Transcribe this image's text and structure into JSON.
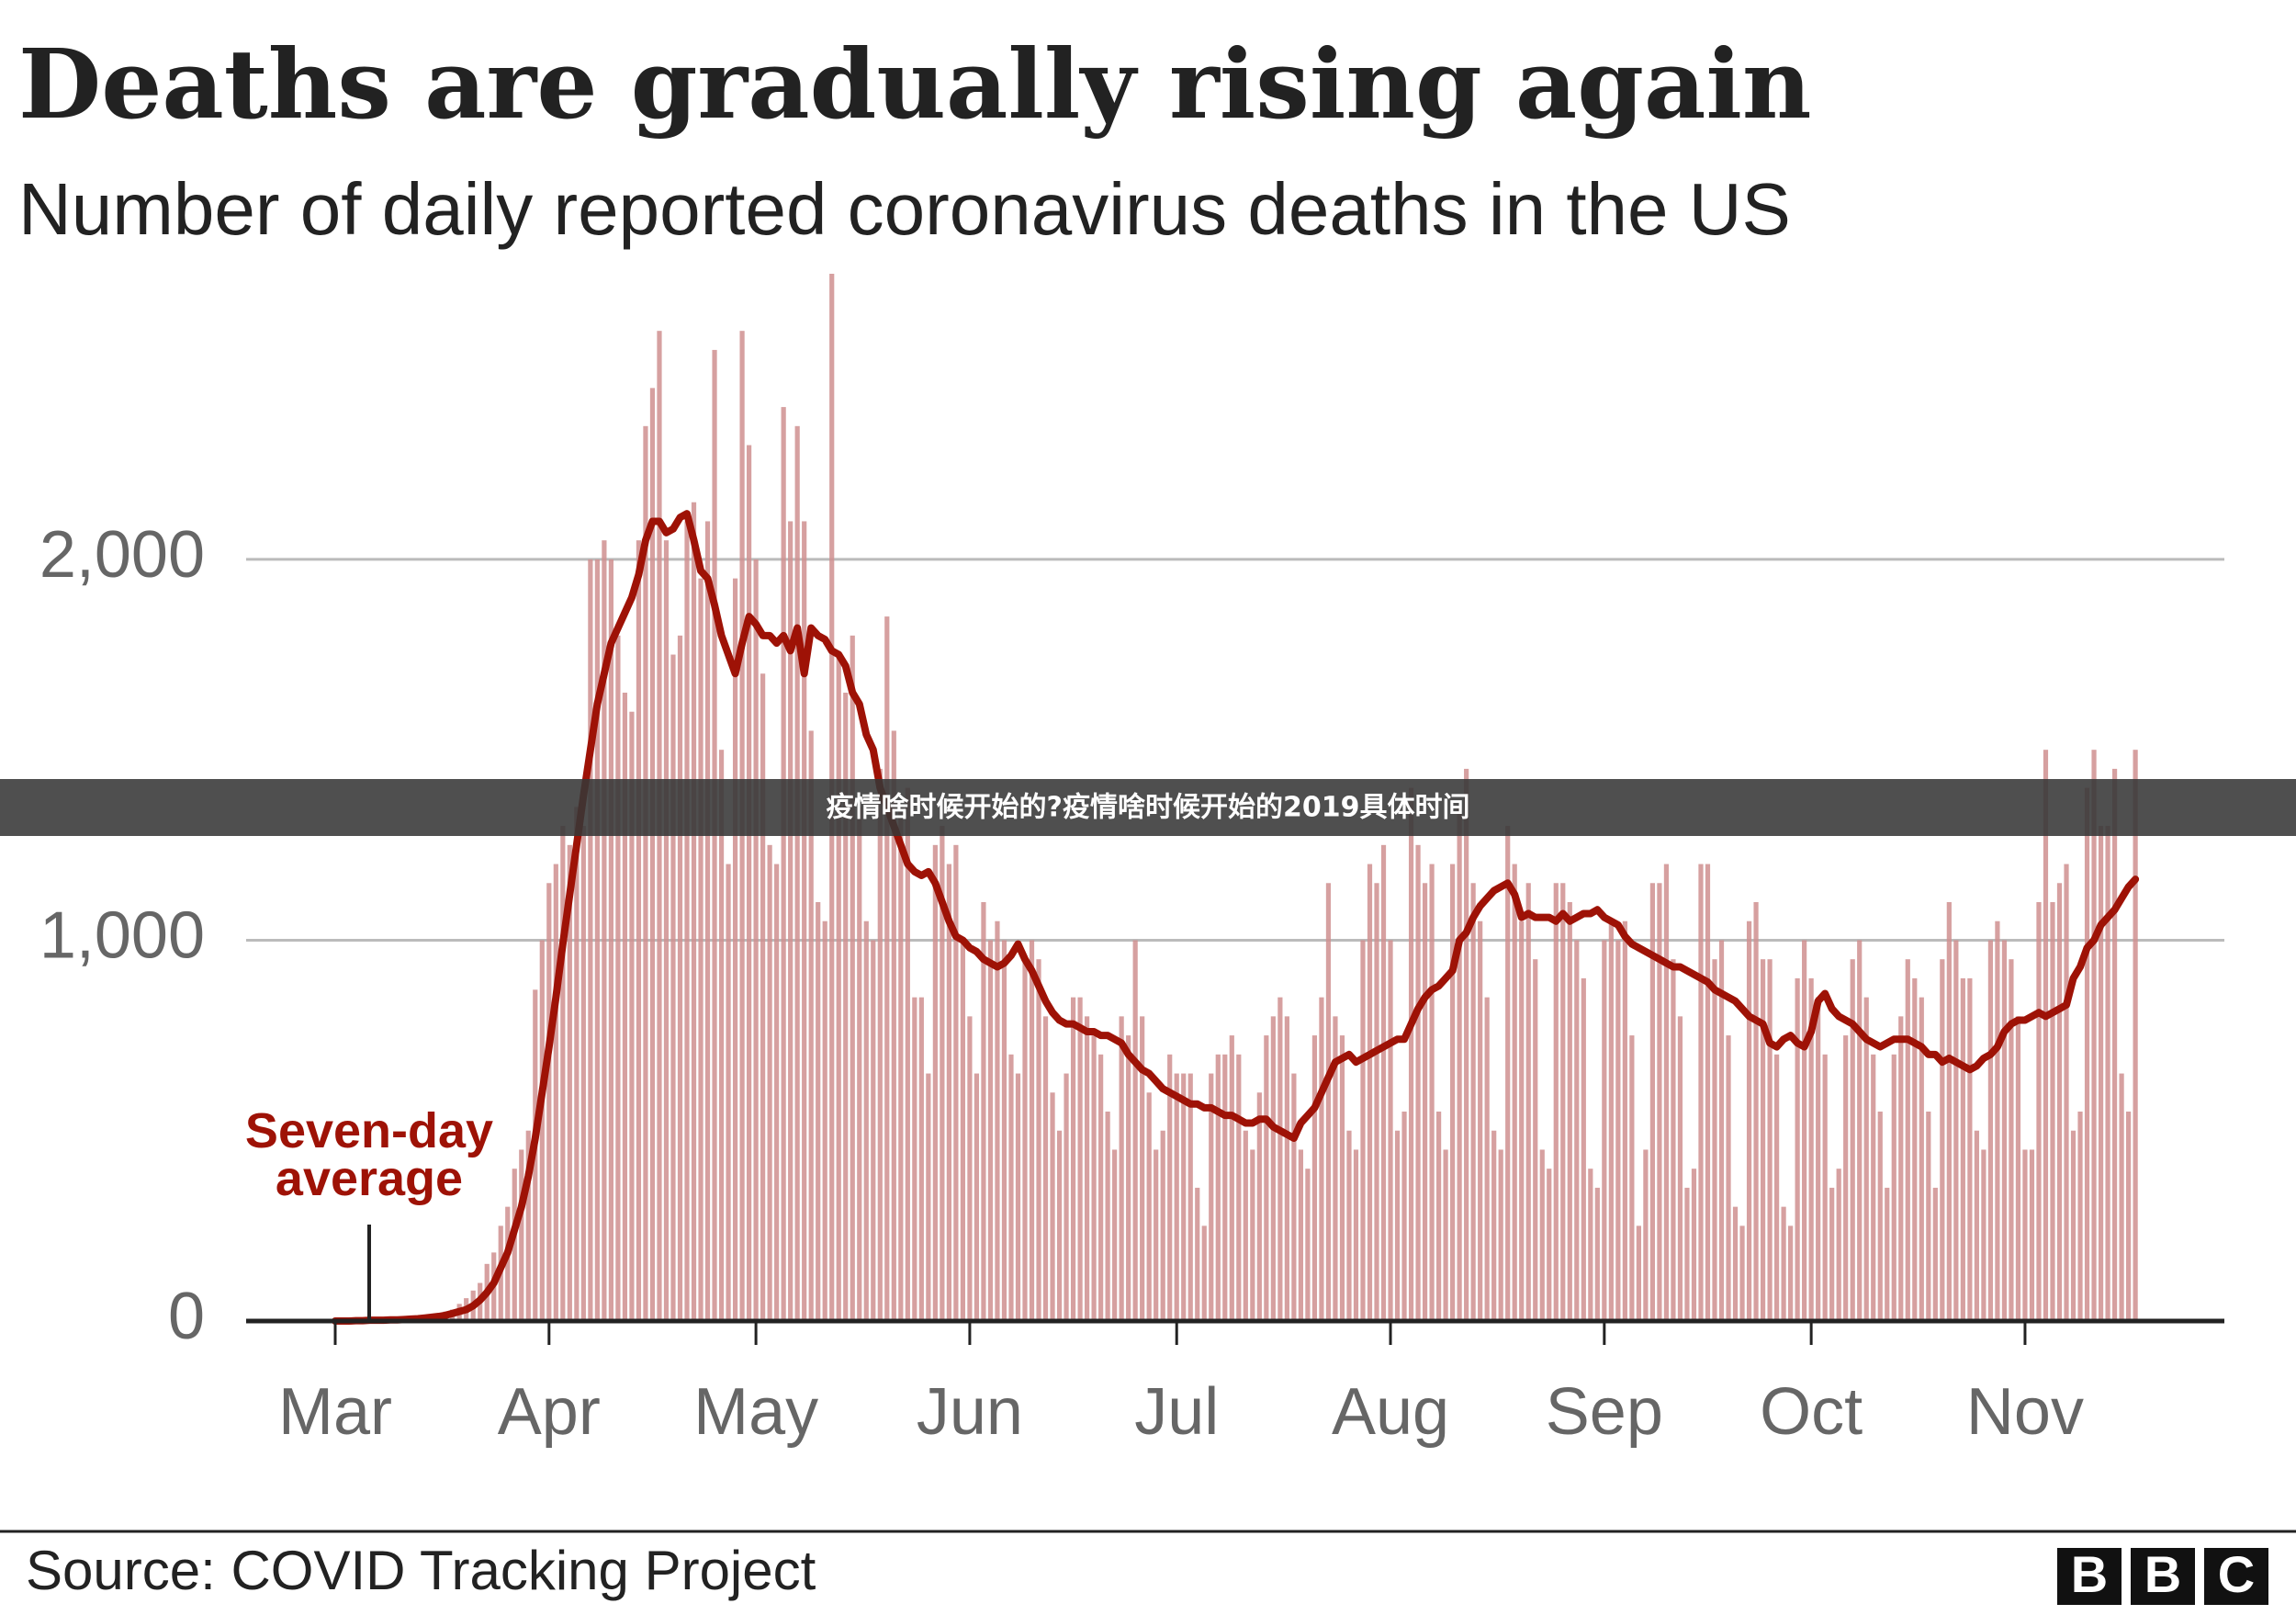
{
  "chart_data": {
    "type": "bar",
    "title": "Deaths are gradually rising again",
    "subtitle": "Number of daily reported coronavirus deaths in the US",
    "categories": [
      "Mar",
      null,
      null,
      null,
      null,
      null,
      null,
      null,
      null,
      null,
      null,
      null,
      null,
      null,
      null,
      null,
      null,
      null,
      null,
      null,
      null,
      null,
      null,
      null,
      null,
      null,
      null,
      null,
      null,
      null,
      null,
      "Apr",
      null,
      null,
      null,
      null,
      null,
      null,
      null,
      null,
      null,
      null,
      null,
      null,
      null,
      null,
      null,
      null,
      null,
      null,
      null,
      null,
      null,
      null,
      null,
      null,
      null,
      null,
      null,
      null,
      null,
      "May",
      null,
      null,
      null,
      null,
      null,
      null,
      null,
      null,
      null,
      null,
      null,
      null,
      null,
      null,
      null,
      null,
      null,
      null,
      null,
      null,
      null,
      null,
      null,
      null,
      null,
      null,
      null,
      null,
      null,
      null,
      "Jun",
      null,
      null,
      null,
      null,
      null,
      null,
      null,
      null,
      null,
      null,
      null,
      null,
      null,
      null,
      null,
      null,
      null,
      null,
      null,
      null,
      null,
      null,
      null,
      null,
      null,
      null,
      null,
      null,
      null,
      "Jul",
      null,
      null,
      null,
      null,
      null,
      null,
      null,
      null,
      null,
      null,
      null,
      null,
      null,
      null,
      null,
      null,
      null,
      null,
      null,
      null,
      null,
      null,
      null,
      null,
      null,
      null,
      null,
      null,
      null,
      null,
      "Aug",
      null,
      null,
      null,
      null,
      null,
      null,
      null,
      null,
      null,
      null,
      null,
      null,
      null,
      null,
      null,
      null,
      null,
      null,
      null,
      null,
      null,
      null,
      null,
      null,
      null,
      null,
      null,
      null,
      null,
      null,
      "Sep",
      null,
      null,
      null,
      null,
      null,
      null,
      null,
      null,
      null,
      null,
      null,
      null,
      null,
      null,
      null,
      null,
      null,
      null,
      null,
      null,
      null,
      null,
      null,
      null,
      null,
      null,
      null,
      null,
      null,
      "Oct",
      null,
      null,
      null,
      null,
      null,
      null,
      null,
      null,
      null,
      null,
      null,
      null,
      null,
      null,
      null,
      null,
      null,
      null,
      null,
      null,
      null,
      null,
      null,
      null,
      null,
      null,
      null,
      null,
      null,
      null,
      "Nov",
      null,
      null,
      null,
      null,
      null,
      null,
      null,
      null,
      null,
      null,
      null,
      null,
      null,
      null,
      null,
      null
    ],
    "series": [
      {
        "type": "bar",
        "color": "#cf8f8f",
        "values": [
          0,
          1,
          2,
          2,
          1,
          3,
          2,
          4,
          3,
          5,
          6,
          8,
          10,
          12,
          15,
          20,
          25,
          30,
          45,
          60,
          80,
          100,
          150,
          180,
          250,
          300,
          400,
          450,
          500,
          870,
          1000,
          1150,
          1200,
          1300,
          1250,
          1350,
          1300,
          2000,
          2000,
          2050,
          2000,
          1800,
          1650,
          1600,
          2050,
          2350,
          2450,
          2600,
          2050,
          1750,
          1800,
          2100,
          2150,
          1950,
          2100,
          2550,
          1500,
          1200,
          1950,
          2600,
          2300,
          2000,
          1700,
          1250,
          1200,
          2400,
          2100,
          2350,
          2100,
          1550,
          1100,
          1050,
          2750,
          1750,
          1650,
          1800,
          1350,
          1050,
          1000,
          1450,
          1850,
          1550,
          1350,
          1400,
          850,
          850,
          650,
          1250,
          1300,
          1200,
          1250,
          1000,
          800,
          650,
          1100,
          1000,
          1050,
          1000,
          700,
          650,
          950,
          1000,
          950,
          800,
          600,
          500,
          650,
          850,
          850,
          800,
          750,
          700,
          550,
          450,
          800,
          750,
          1000,
          800,
          600,
          450,
          500,
          700,
          650,
          650,
          650,
          350,
          250,
          650,
          700,
          700,
          750,
          700,
          500,
          450,
          600,
          750,
          800,
          850,
          800,
          650,
          450,
          400,
          750,
          850,
          1150,
          800,
          750,
          500,
          450,
          1000,
          1200,
          1150,
          1250,
          1000,
          500,
          550,
          1400,
          1250,
          1150,
          1200,
          550,
          450,
          1200,
          1350,
          1450,
          1150,
          1050,
          850,
          500,
          450,
          1300,
          1200,
          1050,
          1150,
          950,
          450,
          400,
          1150,
          1150,
          1100,
          1000,
          900,
          400,
          350,
          1000,
          1050,
          1000,
          1050,
          750,
          250,
          450,
          1150,
          1150,
          1200,
          950,
          800,
          350,
          400,
          1200,
          1200,
          950,
          1000,
          750,
          300,
          250,
          1050,
          1100,
          950,
          950,
          700,
          300,
          250,
          900,
          1000,
          900,
          850,
          700,
          350,
          400,
          750,
          950,
          1000,
          850,
          700,
          550,
          350,
          700,
          800,
          950,
          900,
          850,
          550,
          350,
          950,
          1100,
          1000,
          900,
          900,
          500,
          450,
          1000,
          1050,
          1000,
          950,
          800,
          450,
          450,
          1100,
          1500,
          1100,
          1150,
          1200,
          500,
          550,
          1400,
          1500,
          1300,
          1300,
          1450,
          650,
          550,
          1500
        ]
      },
      {
        "type": "line",
        "name": "Seven-day average",
        "color": "#9e1206",
        "values": [
          0,
          0,
          0,
          1,
          1,
          2,
          2,
          2,
          3,
          3,
          4,
          5,
          6,
          8,
          10,
          12,
          15,
          20,
          25,
          30,
          40,
          55,
          75,
          100,
          140,
          180,
          240,
          300,
          380,
          480,
          600,
          720,
          850,
          990,
          1120,
          1250,
          1380,
          1500,
          1620,
          1700,
          1780,
          1820,
          1860,
          1900,
          1960,
          2050,
          2100,
          2100,
          2070,
          2080,
          2110,
          2120,
          2050,
          1970,
          1950,
          1880,
          1800,
          1750,
          1700,
          1780,
          1850,
          1830,
          1800,
          1800,
          1780,
          1800,
          1760,
          1820,
          1700,
          1820,
          1800,
          1790,
          1760,
          1750,
          1720,
          1650,
          1620,
          1540,
          1500,
          1400,
          1350,
          1300,
          1250,
          1200,
          1180,
          1170,
          1180,
          1150,
          1100,
          1050,
          1010,
          1000,
          980,
          970,
          950,
          940,
          930,
          940,
          960,
          990,
          950,
          920,
          880,
          840,
          810,
          790,
          780,
          780,
          770,
          760,
          760,
          750,
          750,
          740,
          730,
          700,
          680,
          660,
          650,
          630,
          610,
          600,
          590,
          580,
          570,
          570,
          560,
          560,
          550,
          540,
          540,
          530,
          520,
          520,
          530,
          530,
          510,
          500,
          490,
          480,
          520,
          540,
          560,
          600,
          640,
          680,
          690,
          700,
          680,
          690,
          700,
          710,
          720,
          730,
          740,
          740,
          780,
          820,
          850,
          870,
          880,
          900,
          920,
          1000,
          1020,
          1060,
          1090,
          1110,
          1130,
          1140,
          1150,
          1120,
          1060,
          1070,
          1060,
          1060,
          1060,
          1050,
          1070,
          1050,
          1060,
          1070,
          1070,
          1080,
          1060,
          1050,
          1040,
          1010,
          990,
          980,
          970,
          960,
          950,
          940,
          930,
          930,
          920,
          910,
          900,
          890,
          870,
          860,
          850,
          840,
          820,
          800,
          790,
          780,
          730,
          720,
          740,
          750,
          730,
          720,
          760,
          840,
          860,
          820,
          800,
          790,
          780,
          760,
          740,
          730,
          720,
          730,
          740,
          740,
          740,
          730,
          720,
          700,
          700,
          680,
          690,
          680,
          670,
          660,
          670,
          690,
          700,
          720,
          760,
          780,
          790,
          790,
          800,
          810,
          800,
          810,
          820,
          830,
          900,
          930,
          980,
          1000,
          1040,
          1060,
          1080,
          1110,
          1140,
          1160
        ]
      }
    ],
    "ylim": [
      0,
      2750
    ],
    "yticks": [
      0,
      {
        "value": 1000,
        "label": "1,000"
      },
      {
        "value": 2000,
        "label": "2,000"
      }
    ],
    "grid": true,
    "source": "Source: COVID Tracking Project"
  },
  "banner": "疫情啥时候开始的?疫情啥时候开始的2019具体时间",
  "logo": "BBC"
}
